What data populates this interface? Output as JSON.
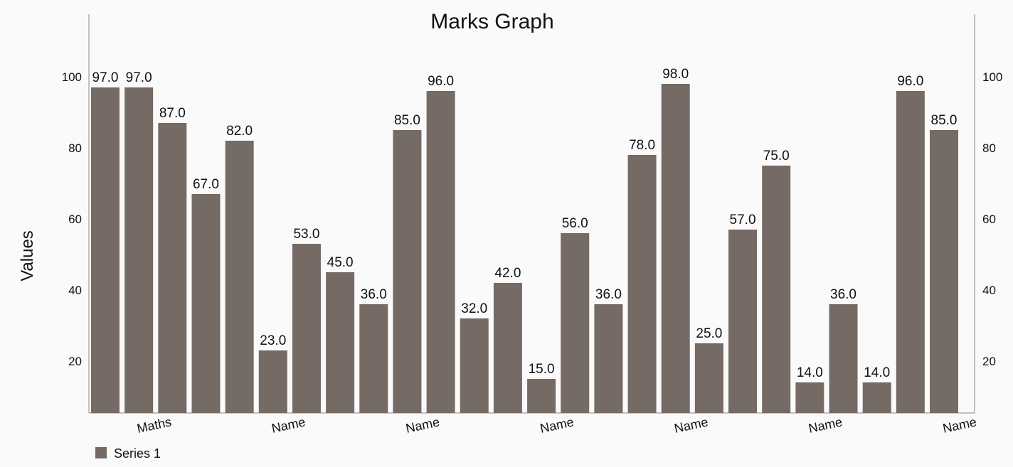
{
  "chart_data": {
    "type": "bar",
    "title": "Marks Graph",
    "ylabel": "Values",
    "xlabel": "",
    "x_tick_labels": [
      "Maths",
      "Name",
      "Name",
      "Name",
      "Name",
      "Name",
      "Name"
    ],
    "values": [
      97,
      97,
      87,
      67,
      82,
      23,
      53,
      45,
      36,
      85,
      96,
      32,
      42,
      15,
      56,
      36,
      78,
      98,
      25,
      57,
      75,
      14,
      36,
      14,
      96,
      85
    ],
    "value_label_format": "one decimal",
    "ylim": [
      5.4,
      117.6
    ],
    "y_ticks": [
      20,
      40,
      60,
      80,
      100
    ],
    "y_axes": [
      "left",
      "right"
    ],
    "grid": false,
    "legend": {
      "placement": "bottom-left",
      "entries": [
        "Series 1"
      ]
    },
    "series": [
      {
        "name": "Series 1",
        "color": "#756b64"
      }
    ]
  }
}
